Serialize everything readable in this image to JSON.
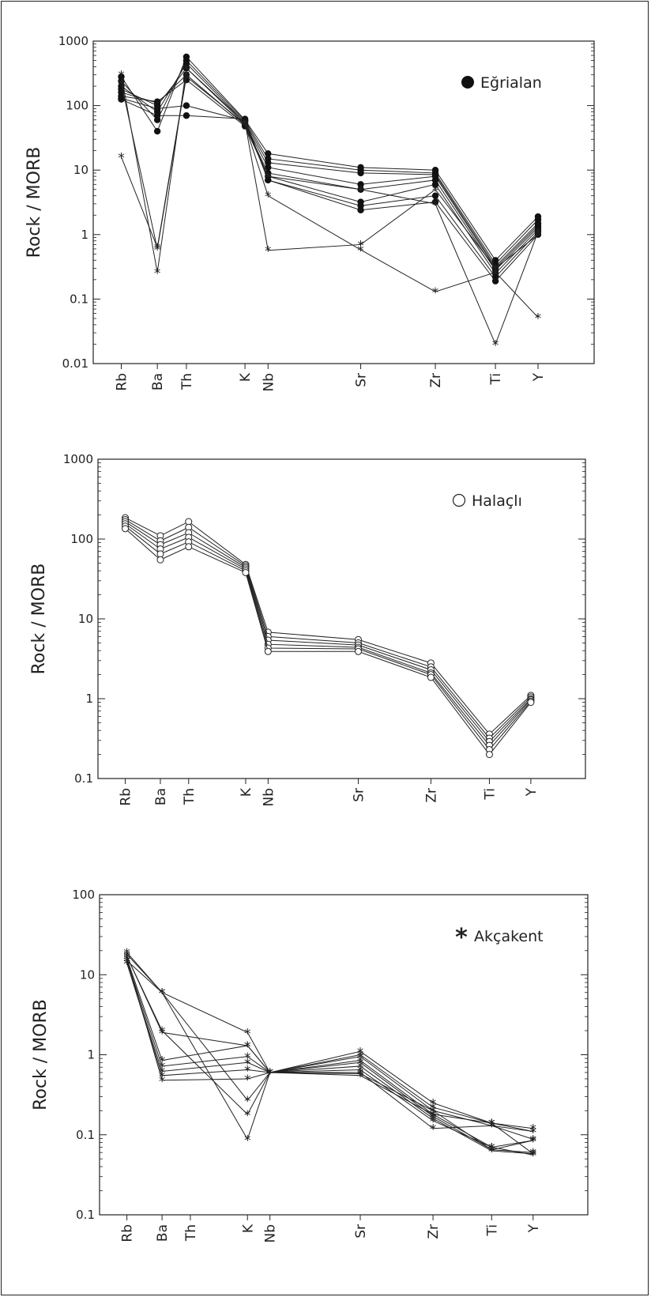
{
  "figure": {
    "categories": [
      "Rb",
      "Ba",
      "Th",
      "K",
      "Nb",
      "Sr",
      "Zr",
      "Ti",
      "Y"
    ]
  },
  "chart_data": [
    {
      "type": "line",
      "ylabel": "Rock / MORB",
      "yscale": "log",
      "ylim": [
        0.01,
        1000
      ],
      "yticks": [
        "1000",
        "100",
        "10",
        "1",
        "0.1",
        "0.01"
      ],
      "categories": [
        "Rb",
        "Ba",
        "Th",
        "K",
        "Nb",
        "Sr",
        "Zr",
        "Ti",
        "Y"
      ],
      "legend": {
        "label": "Eğrialan",
        "marker": "filled-circle",
        "position": "top-right"
      },
      "series": [
        {
          "marker": "dot",
          "values": [
            280,
            40,
            570,
            60,
            18,
            11,
            10,
            0.4,
            1.9
          ]
        },
        {
          "marker": "dot",
          "values": [
            240,
            60,
            500,
            58,
            15,
            10,
            9,
            0.35,
            1.7
          ]
        },
        {
          "marker": "dot",
          "values": [
            200,
            80,
            450,
            55,
            13,
            9,
            8.5,
            0.32,
            1.5
          ]
        },
        {
          "marker": "dot",
          "values": [
            180,
            100,
            380,
            52,
            11,
            6,
            8,
            0.3,
            1.4
          ]
        },
        {
          "marker": "dot",
          "values": [
            160,
            110,
            300,
            50,
            9,
            5,
            7,
            0.28,
            1.3
          ]
        },
        {
          "marker": "dot",
          "values": [
            140,
            115,
            250,
            48,
            8,
            3.2,
            6,
            0.25,
            1.2
          ]
        },
        {
          "marker": "dot",
          "values": [
            130,
            90,
            100,
            58,
            7,
            2.8,
            4,
            0.22,
            1.1
          ]
        },
        {
          "marker": "dot",
          "values": [
            125,
            70,
            70,
            62,
            7,
            2.4,
            3.2,
            0.19,
            1.0
          ]
        },
        {
          "marker": "star",
          "values": [
            300,
            0.26,
            380,
            55,
            0.57,
            0.7,
            5,
            0.3,
            1.0
          ]
        },
        {
          "marker": "star",
          "values": [
            16,
            0.63,
            300,
            50,
            4,
            0.58,
            0.13,
            0.26,
            0.052
          ]
        },
        {
          "marker": "star",
          "values": [
            220,
            0.6,
            280,
            52,
            8,
            5,
            3,
            0.02,
            1.1
          ]
        }
      ]
    },
    {
      "type": "line",
      "ylabel": "Rock / MORB",
      "yscale": "log",
      "ylim": [
        0.1,
        1000
      ],
      "yticks": [
        "1000",
        "100",
        "10",
        "1",
        "0.1"
      ],
      "categories": [
        "Rb",
        "Ba",
        "Th",
        "K",
        "Nb",
        "Sr",
        "Zr",
        "Ti",
        "Y"
      ],
      "legend": {
        "label": "Halaçlı",
        "marker": "open-circle",
        "position": "top-right"
      },
      "series": [
        {
          "marker": "circle",
          "values": [
            185,
            110,
            165,
            48,
            6.8,
            5.5,
            2.8,
            0.36,
            1.1
          ]
        },
        {
          "marker": "circle",
          "values": [
            175,
            95,
            140,
            46,
            6.0,
            5.0,
            2.5,
            0.32,
            1.05
          ]
        },
        {
          "marker": "circle",
          "values": [
            165,
            85,
            120,
            44,
            5.4,
            4.7,
            2.3,
            0.29,
            1.0
          ]
        },
        {
          "marker": "circle",
          "values": [
            155,
            75,
            105,
            42,
            4.8,
            4.4,
            2.1,
            0.26,
            0.97
          ]
        },
        {
          "marker": "circle",
          "values": [
            145,
            65,
            92,
            40,
            4.3,
            4.2,
            2.0,
            0.23,
            0.93
          ]
        },
        {
          "marker": "circle",
          "values": [
            135,
            55,
            80,
            38,
            3.9,
            3.9,
            1.85,
            0.2,
            0.9
          ]
        }
      ]
    },
    {
      "type": "line",
      "ylabel": "Rock / MORB",
      "yscale": "log",
      "ylim": [
        0.01,
        100
      ],
      "yticks": [
        "100",
        "10",
        "1",
        "0.1",
        "0.1"
      ],
      "categories": [
        "Rb",
        "Ba",
        "Th",
        "K",
        "Nb",
        "Sr",
        "Zr",
        "Ti",
        "Y"
      ],
      "legend": {
        "label": "Akçakent",
        "marker": "asterisk",
        "position": "top-right"
      },
      "series": [
        {
          "marker": "star",
          "values": [
            19,
            6,
            null,
            1.9,
            0.6,
            1.1,
            0.25,
            0.14,
            0.12
          ]
        },
        {
          "marker": "star",
          "values": [
            17,
            1.9,
            null,
            1.3,
            0.6,
            1.0,
            0.22,
            0.14,
            0.11
          ]
        },
        {
          "marker": "star",
          "values": [
            16,
            0.85,
            null,
            1.3,
            0.6,
            0.95,
            0.2,
            0.13,
            0.088
          ]
        },
        {
          "marker": "star",
          "values": [
            15,
            0.72,
            null,
            0.95,
            0.6,
            0.85,
            0.18,
            0.07,
            0.085
          ]
        },
        {
          "marker": "star",
          "values": [
            14,
            0.62,
            null,
            0.8,
            0.6,
            0.8,
            0.17,
            0.065,
            0.06
          ]
        },
        {
          "marker": "star",
          "values": [
            14,
            0.55,
            null,
            0.65,
            0.6,
            0.72,
            0.16,
            0.063,
            0.058
          ]
        },
        {
          "marker": "star",
          "values": [
            16,
            0.48,
            null,
            0.5,
            0.6,
            0.65,
            0.15,
            0.07,
            0.056
          ]
        },
        {
          "marker": "star",
          "values": [
            15,
            6,
            null,
            0.27,
            0.6,
            0.6,
            0.12,
            0.13,
            0.11
          ]
        },
        {
          "marker": "star",
          "values": [
            17,
            2,
            null,
            0.18,
            0.6,
            0.58,
            0.2,
            0.065,
            0.085
          ]
        },
        {
          "marker": "star",
          "values": [
            18,
            6,
            null,
            0.088,
            0.6,
            0.55,
            0.18,
            0.14,
            0.058
          ]
        }
      ]
    }
  ]
}
